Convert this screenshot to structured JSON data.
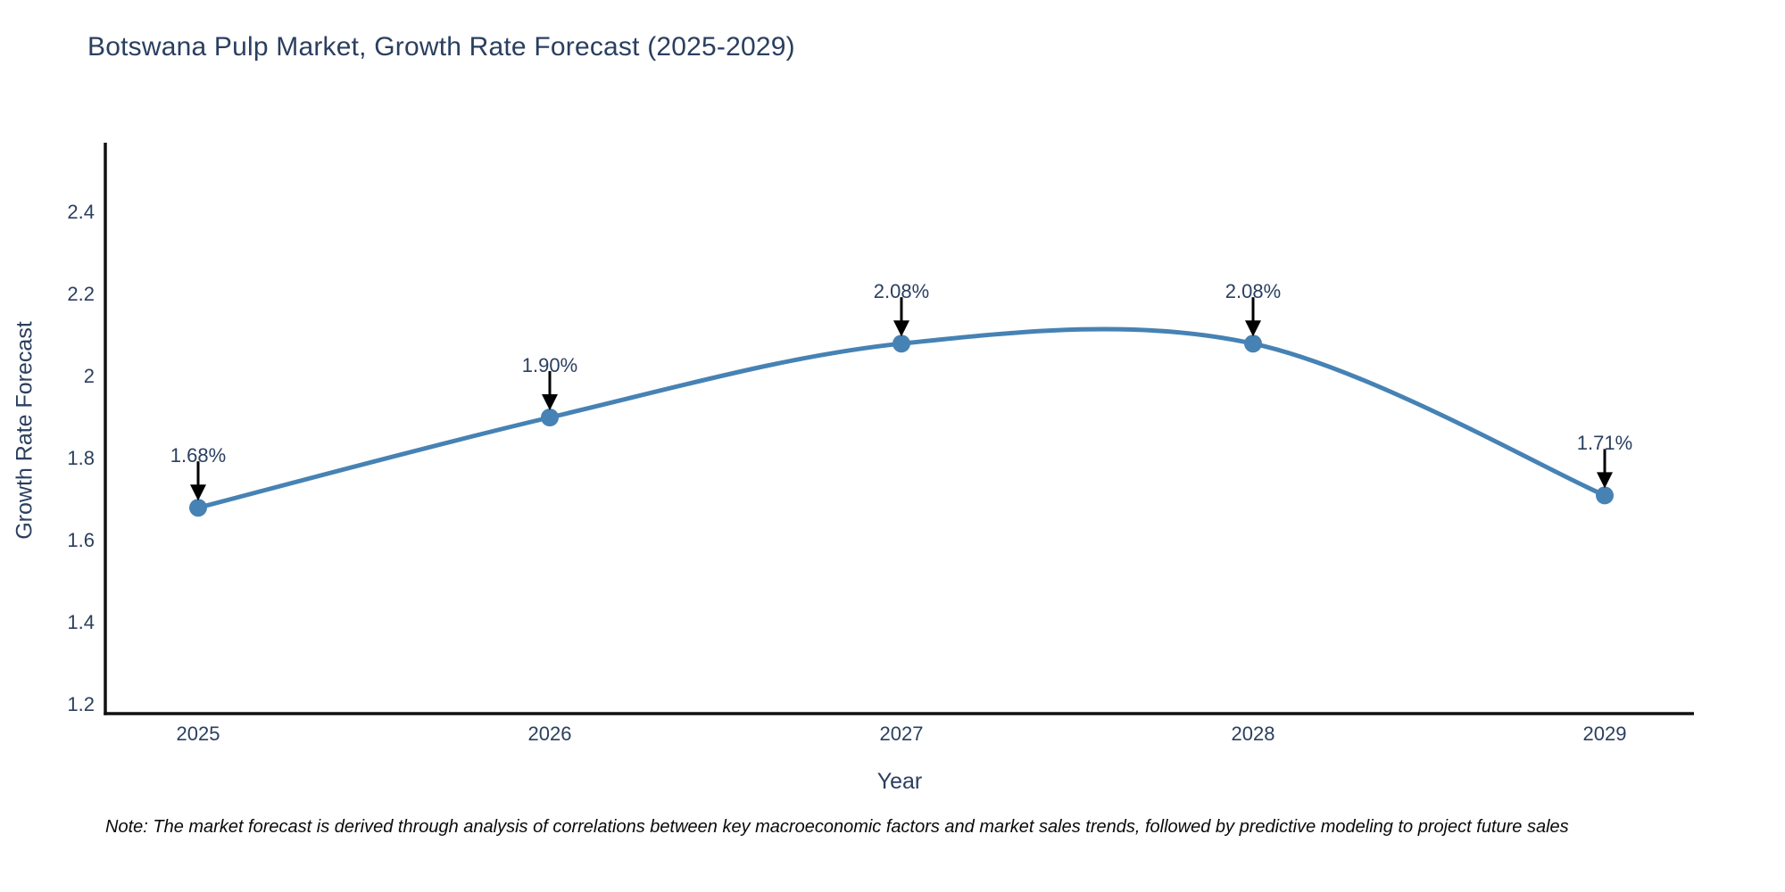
{
  "page": {
    "title": "Botswana Pulp Market, Growth Rate Forecast (2025-2029)",
    "note": "Note: The market forecast is derived through analysis of correlations between key macroeconomic factors and market sales trends, followed by predictive modeling to project future sales"
  },
  "colors": {
    "line": "#4682b4",
    "marker": "#4682b4",
    "axis": "#111111",
    "arrow": "#000000",
    "text": "#2a3f5f"
  },
  "chart_data": {
    "type": "line",
    "title": "Botswana Pulp Market, Growth Rate Forecast (2025-2029)",
    "x": [
      2025,
      2026,
      2027,
      2028,
      2029
    ],
    "series": [
      {
        "name": "Growth Rate Forecast",
        "values": [
          1.68,
          1.9,
          2.08,
          2.08,
          1.71
        ]
      }
    ],
    "point_labels": [
      "1.68%",
      "1.90%",
      "2.08%",
      "2.08%",
      "1.71%"
    ],
    "xlabel": "Year",
    "ylabel": "Growth Rate Forecast",
    "xtick_labels": [
      "2025",
      "2026",
      "2027",
      "2028",
      "2029"
    ],
    "ytick_values": [
      2.4,
      2.2,
      2.0,
      1.8,
      1.6,
      1.4,
      1.2
    ],
    "ytick_labels": [
      "2.4",
      "2.2",
      "2",
      "1.8",
      "1.6",
      "1.4",
      "1.2"
    ],
    "ylim": [
      1.18,
      2.6
    ],
    "grid": false,
    "legend": false,
    "line_shape": "spline",
    "annotations_have_arrows": true
  }
}
